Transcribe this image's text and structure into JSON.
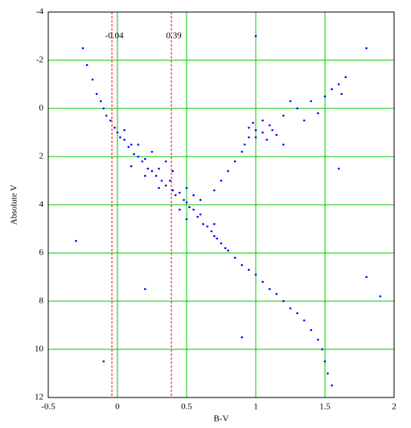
{
  "chart_data": {
    "type": "scatter",
    "xlabel": "B-V",
    "ylabel": "Absolute V",
    "xlim": [
      -0.5,
      2
    ],
    "xticks": [
      -0.5,
      0,
      0.5,
      1,
      1.5,
      2
    ],
    "ylim": [
      -4,
      12
    ],
    "yticks": [
      -4,
      -2,
      0,
      2,
      4,
      6,
      8,
      10,
      12
    ],
    "invert_y": true,
    "grid": true,
    "grid_color": "#00cc00",
    "reference_lines": {
      "values": [
        -0.04,
        0.39
      ],
      "color": "#ff0000"
    },
    "series": [
      {
        "color": "#0000ff",
        "x": [
          -0.22,
          -0.18,
          -0.15,
          -0.12,
          -0.1,
          -0.08,
          -0.05,
          -0.02,
          0.0,
          0.02,
          0.05,
          0.08,
          0.1,
          0.12,
          0.15,
          0.18,
          0.2,
          0.22,
          0.25,
          0.28,
          0.3,
          0.32,
          0.35,
          0.38,
          0.4,
          0.42,
          0.45,
          0.48,
          0.5,
          0.52,
          0.55,
          0.58,
          0.6,
          0.62,
          0.65,
          0.68,
          0.7,
          0.72,
          0.75,
          0.78,
          0.8,
          0.85,
          0.9,
          0.95,
          1.0,
          1.05,
          1.1,
          1.15,
          1.2,
          1.25,
          1.3,
          1.35,
          1.4,
          1.45,
          1.48,
          1.5,
          1.52,
          1.55,
          0.1,
          0.2,
          0.3,
          0.4,
          0.5,
          0.55,
          0.6,
          0.35,
          0.25,
          0.15,
          0.05,
          0.45,
          0.5,
          0.7,
          0.7,
          0.75,
          0.8,
          0.85,
          0.9,
          0.92,
          0.95,
          0.95,
          1.0,
          1.05,
          1.1,
          1.0,
          1.05,
          1.15,
          0.98,
          1.08,
          1.12,
          1.2,
          1.3,
          1.4,
          1.5,
          1.55,
          1.6,
          1.65,
          1.62,
          1.45,
          1.35,
          1.2,
          1.25,
          -0.25,
          1.8,
          1.9,
          0.2,
          -0.3,
          0.9,
          1.8,
          1.0,
          -0.1,
          1.6
        ],
        "values": [
          -1.8,
          -1.2,
          -0.6,
          -0.3,
          0.0,
          0.3,
          0.5,
          0.8,
          1.0,
          1.2,
          1.3,
          1.6,
          1.5,
          1.9,
          2.0,
          2.2,
          2.1,
          2.5,
          2.6,
          2.8,
          2.5,
          3.0,
          3.2,
          3.0,
          3.4,
          3.6,
          3.5,
          3.8,
          3.9,
          4.1,
          4.2,
          4.5,
          4.4,
          4.8,
          4.9,
          5.1,
          5.3,
          5.4,
          5.6,
          5.8,
          5.9,
          6.2,
          6.5,
          6.7,
          6.9,
          7.2,
          7.5,
          7.7,
          8.0,
          8.3,
          8.5,
          8.8,
          9.2,
          9.6,
          10.0,
          10.5,
          11.0,
          11.5,
          2.4,
          2.8,
          3.3,
          2.6,
          3.3,
          3.6,
          3.8,
          2.2,
          1.8,
          1.5,
          0.9,
          4.2,
          4.6,
          4.8,
          3.4,
          3.0,
          2.6,
          2.2,
          1.8,
          1.5,
          1.2,
          0.8,
          0.9,
          1.0,
          0.7,
          1.2,
          0.5,
          1.1,
          0.6,
          1.3,
          0.9,
          0.3,
          0.0,
          -0.3,
          -0.5,
          -0.8,
          -1.0,
          -1.3,
          -0.6,
          0.2,
          0.5,
          1.5,
          -0.3,
          -2.5,
          7.0,
          7.8,
          7.5,
          5.5,
          9.5,
          -2.5,
          -3.0,
          10.5,
          2.5
        ]
      }
    ]
  }
}
